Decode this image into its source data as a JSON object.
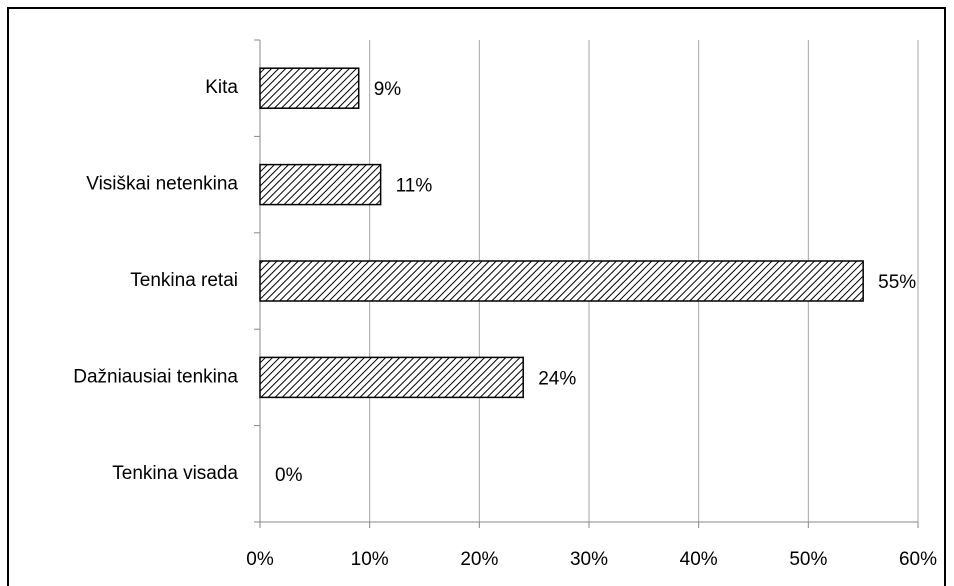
{
  "chart_data": {
    "type": "bar",
    "orientation": "horizontal",
    "categories": [
      "Kita",
      "Visiškai netenkina",
      "Tenkina retai",
      "Dažniausiai tenkina",
      "Tenkina visada"
    ],
    "values": [
      9,
      11,
      55,
      24,
      0
    ],
    "value_labels": [
      "9%",
      "11%",
      "55%",
      "24%",
      "0%"
    ],
    "xlim": [
      0,
      60
    ],
    "xticks": [
      {
        "value": 0,
        "label": "0%"
      },
      {
        "value": 10,
        "label": "10%"
      },
      {
        "value": 20,
        "label": "20%"
      },
      {
        "value": 30,
        "label": "30%"
      },
      {
        "value": 40,
        "label": "40%"
      },
      {
        "value": 50,
        "label": "50%"
      },
      {
        "value": 60,
        "label": "60%"
      }
    ],
    "grid": true,
    "color": "#000000"
  }
}
